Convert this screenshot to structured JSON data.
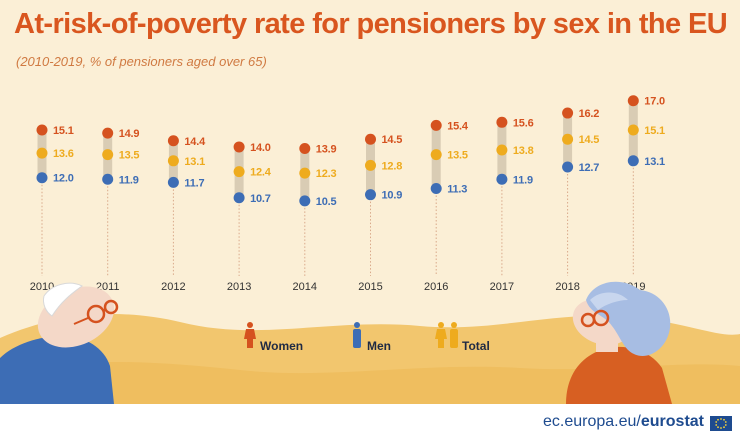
{
  "title": "At-risk-of-poverty rate for pensioners by sex in the EU",
  "subtitle": "(2010-2019, % of pensioners aged over 65)",
  "colors": {
    "women": "#d5521f",
    "men": "#3d6db5",
    "total": "#eeab1e",
    "bar": "#d9ccb4",
    "background": "#fbefd6",
    "hills": "#f2c66e"
  },
  "chart_data": {
    "type": "dot-range",
    "title": "At-risk-of-poverty rate for pensioners by sex in the EU",
    "subtitle": "(2010-2019, % of pensioners aged over 65)",
    "categories": [
      "2010",
      "2011",
      "2012",
      "2013",
      "2014",
      "2015",
      "2016",
      "2017",
      "2018",
      "2019"
    ],
    "series": [
      {
        "name": "Women",
        "values": [
          15.1,
          14.9,
          14.4,
          14.0,
          13.9,
          14.5,
          15.4,
          15.6,
          16.2,
          17.0
        ]
      },
      {
        "name": "Total",
        "values": [
          13.6,
          13.5,
          13.1,
          12.4,
          12.3,
          12.8,
          13.5,
          13.8,
          14.5,
          15.1
        ]
      },
      {
        "name": "Men",
        "values": [
          12.0,
          11.9,
          11.7,
          10.7,
          10.5,
          10.9,
          11.3,
          11.9,
          12.7,
          13.1
        ]
      }
    ],
    "legend": [
      "Women",
      "Men",
      "Total"
    ],
    "legend_position": "bottom-center",
    "grid": false
  },
  "footer": {
    "prefix": "ec.europa.eu/",
    "brand": "eurostat"
  },
  "icons": {
    "women": "woman-icon",
    "men": "man-icon",
    "total": "couple-icon",
    "flag": "eu-flag-icon"
  }
}
